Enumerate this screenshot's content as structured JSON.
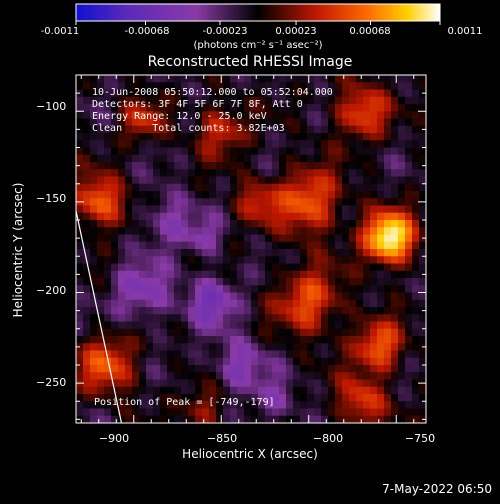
{
  "colorbar": {
    "ticks": [
      "-0.0011",
      "-0.00068",
      "-0.00023",
      "0.00023",
      "0.00068",
      "0.0011"
    ],
    "unit_label": "(photons cm⁻² s⁻¹ asec⁻²)",
    "colors": [
      "#1010d0",
      "#5a2ab8",
      "#8a3aa8",
      "#000000",
      "#c01800",
      "#ff6a00",
      "#ffd000",
      "#ffffff"
    ]
  },
  "plot": {
    "title": "Reconstructed RHESSI Image",
    "annotations": [
      "10-Jun-2008 05:50:12.000 to 05:52:04.000",
      "Detectors: 3F 4F 5F 6F 7F 8F, Att 0",
      "Energy Range: 12.0 - 25.0 keV",
      "Clean     Total counts: 3.82E+03"
    ],
    "peak_label": "Position of Peak = [-749,-179]"
  },
  "chart_data": {
    "type": "heatmap",
    "title": "Reconstructed RHESSI Image",
    "xlabel": "Heliocentric X (arcsec)",
    "ylabel": "Heliocentric Y (arcsec)",
    "xlim": [
      -933,
      -733
    ],
    "ylim": [
      -272,
      -80
    ],
    "xticks": [
      -900,
      -850,
      -800,
      -750
    ],
    "yticks": [
      -100,
      -150,
      -200,
      -250
    ],
    "xtick_labels": [
      "−900",
      "−850",
      "−800",
      "−750"
    ],
    "ytick_labels": [
      "−100",
      "−150",
      "−200",
      "−250"
    ],
    "zlim": [
      -0.0011,
      0.0011
    ],
    "peak": [
      -749,
      -179
    ],
    "limb_line": [
      [
        -933,
        -155
      ],
      [
        -907,
        -272
      ]
    ]
  },
  "timestamp": "7-May-2022 06:50"
}
